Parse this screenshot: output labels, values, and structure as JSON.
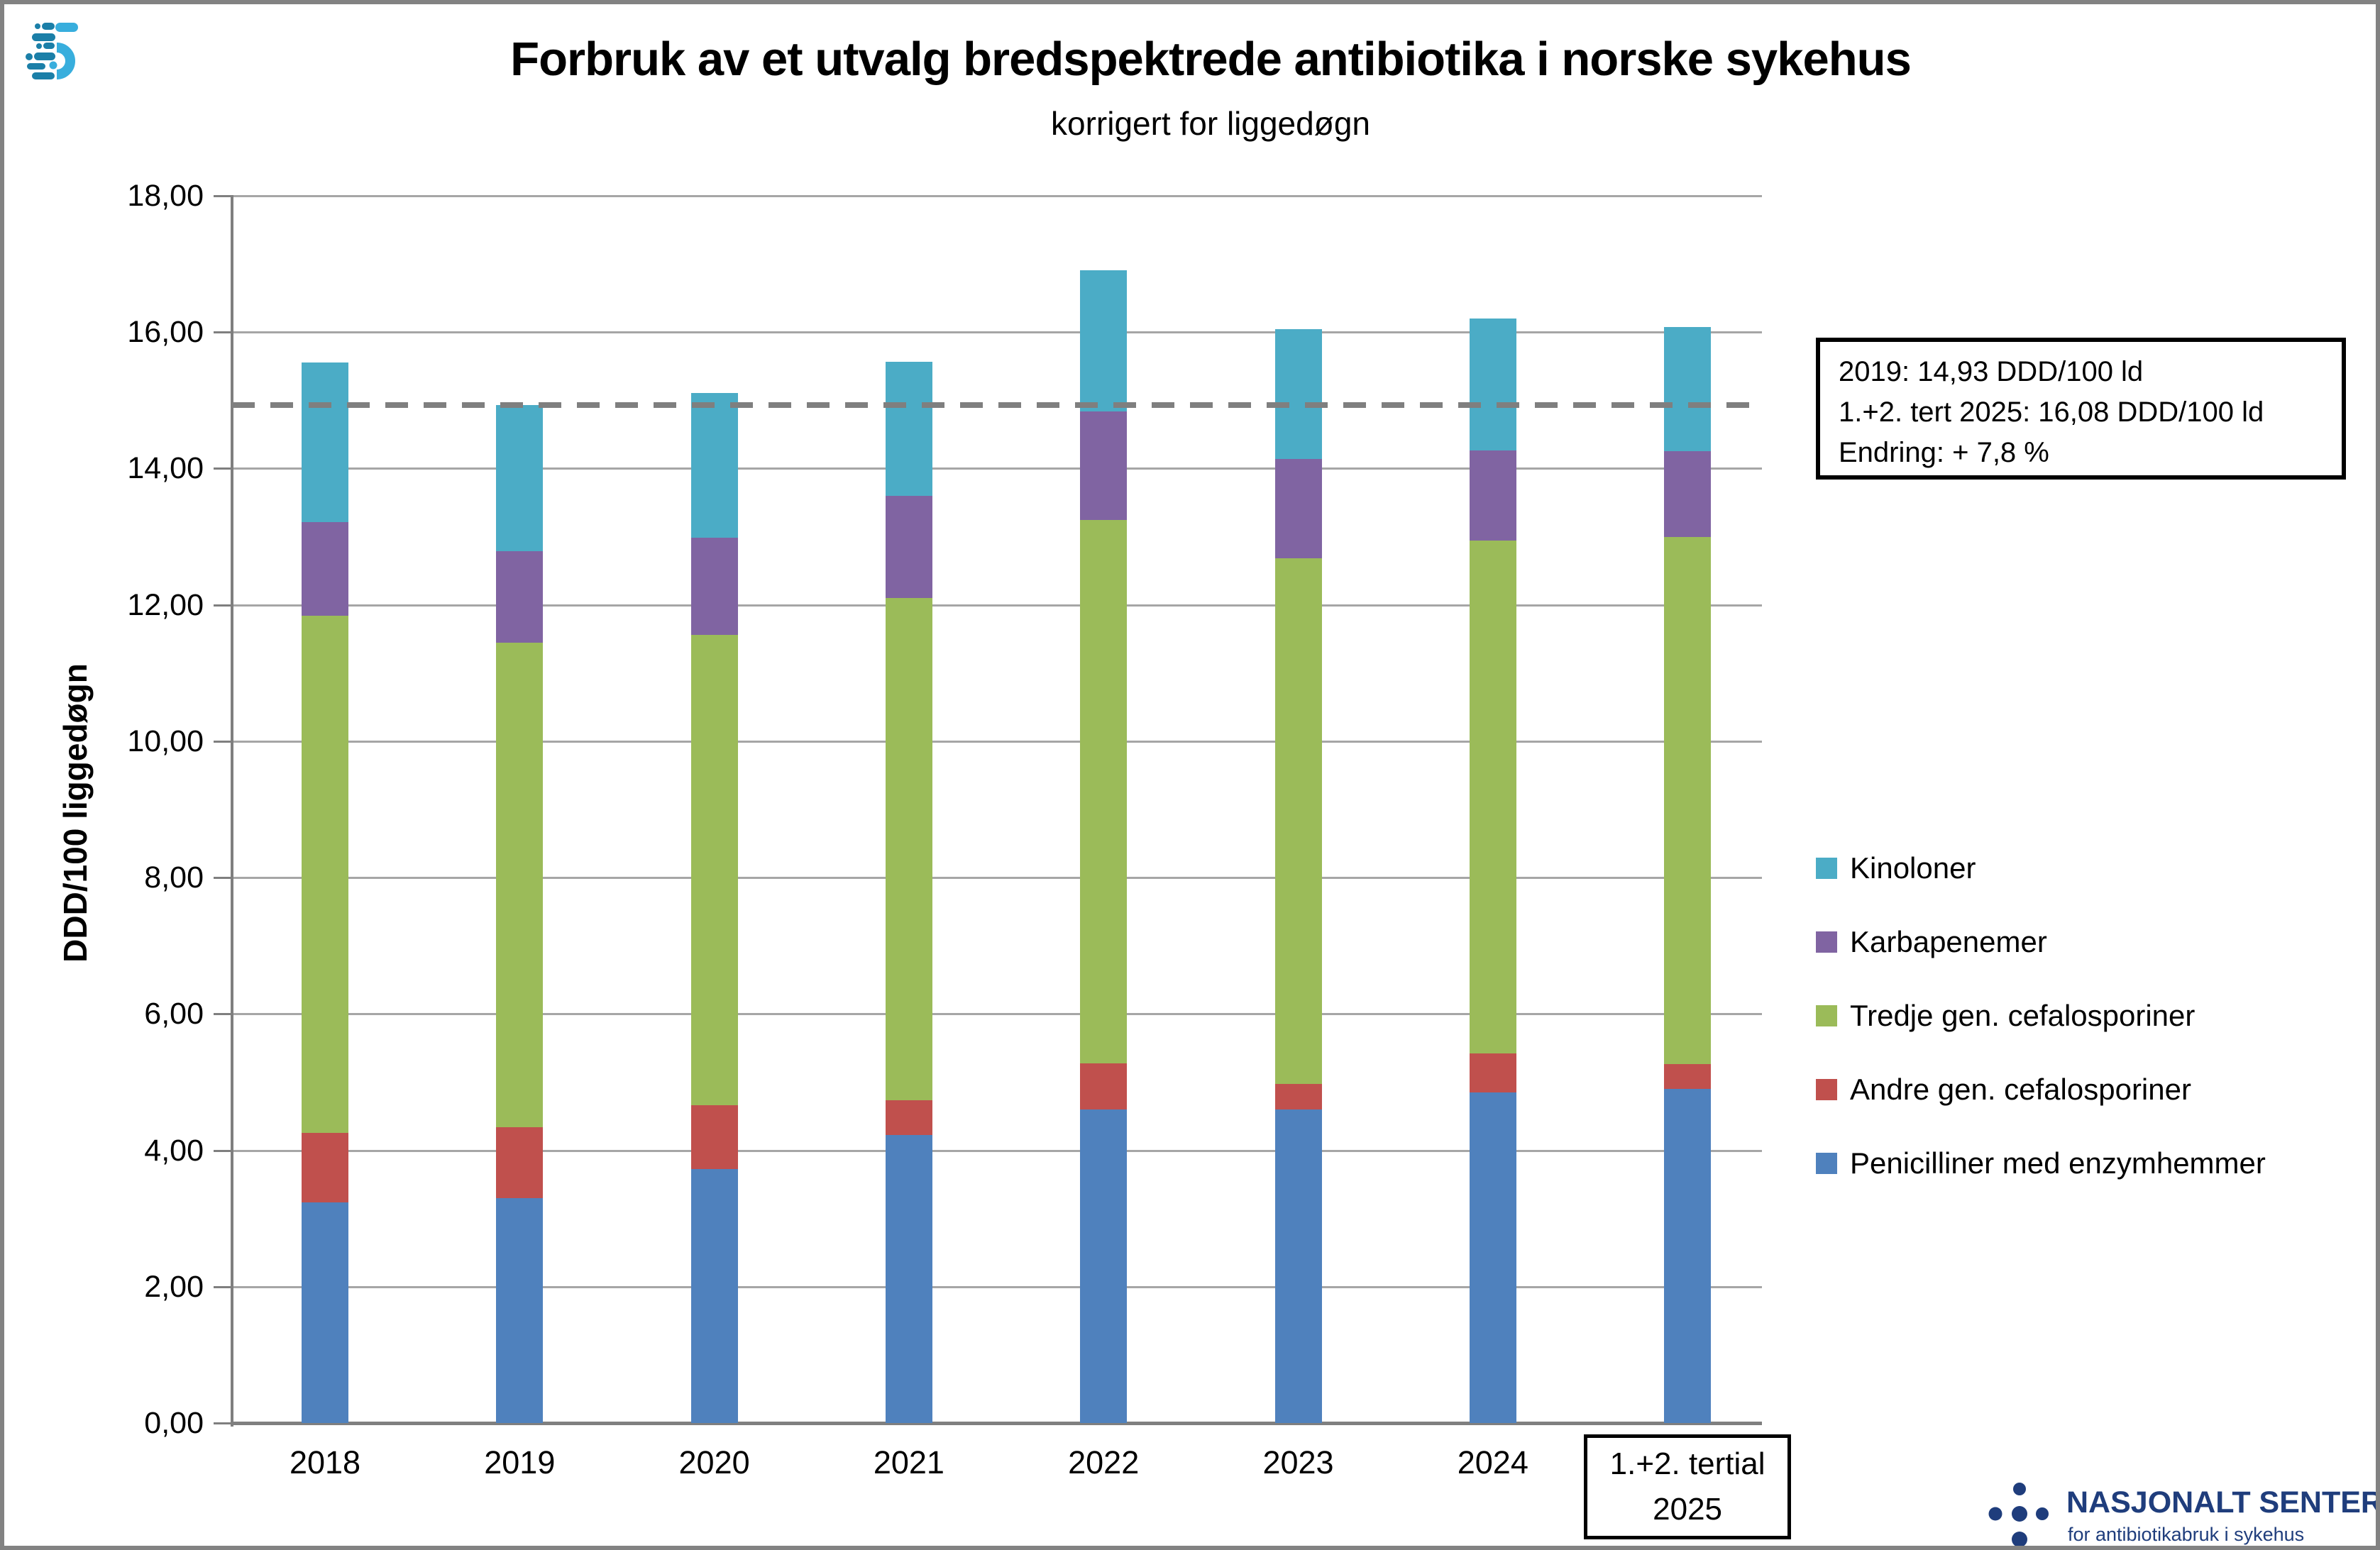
{
  "annotation": {
    "line1": "2019: 14,93 DDD/100 ld",
    "line2": "1.+2. tert 2025: 16,08 DDD/100 ld",
    "line3": "Endring: + 7,8 %"
  },
  "footer_logo": {
    "name": "NASJONALT SENTER",
    "tagline": "for antibiotikabruk i sykehus",
    "color": "#1F3D7C"
  },
  "app_logo": {
    "light": "#38AEDD",
    "dark": "#1B7FA8"
  },
  "chart_data": {
    "type": "bar",
    "stacked": true,
    "title": "Forbruk av et utvalg bredspektrede antibiotika i norske sykehus",
    "subtitle": "korrigert for liggedøgn",
    "xlabel": "",
    "ylabel": "DDD/100 liggedøgn",
    "ylim": [
      0,
      18
    ],
    "ytick_step": 2,
    "ytick_format": "0,00",
    "grid": true,
    "legend_position": "right",
    "categories": [
      "2018",
      "2019",
      "2020",
      "2021",
      "2022",
      "2023",
      "2024",
      "1.+2. tertial|2025"
    ],
    "boxed_last_category": true,
    "series": [
      {
        "name": "Penicilliner med enzymhemmer",
        "color": "#4F81BD",
        "values": [
          3.24,
          3.3,
          3.72,
          4.22,
          4.6,
          4.6,
          4.85,
          4.9
        ]
      },
      {
        "name": "Andre gen. cefalosporiner",
        "color": "#C0504D",
        "values": [
          1.02,
          1.04,
          0.94,
          0.51,
          0.68,
          0.37,
          0.57,
          0.36
        ]
      },
      {
        "name": "Tredje gen. cefalosporiner",
        "color": "#9BBB59",
        "values": [
          7.58,
          7.11,
          6.9,
          7.37,
          7.96,
          7.71,
          7.52,
          7.74
        ]
      },
      {
        "name": "Karbapenemer",
        "color": "#8064A2",
        "values": [
          1.37,
          1.34,
          1.42,
          1.5,
          1.6,
          1.46,
          1.32,
          1.25
        ]
      },
      {
        "name": "Kinoloner",
        "color": "#4BACC6",
        "values": [
          2.34,
          2.14,
          2.13,
          1.97,
          2.07,
          1.9,
          1.94,
          1.83
        ]
      }
    ],
    "totals": [
      15.55,
      14.93,
      15.11,
      15.57,
      16.91,
      16.04,
      16.2,
      16.08
    ],
    "legend_order_top_to_bottom": [
      "Kinoloner",
      "Karbapenemer",
      "Tredje gen. cefalosporiner",
      "Andre gen. cefalosporiner",
      "Penicilliner med enzymhemmer"
    ],
    "reference_line": {
      "value": 14.93,
      "style": "dashed",
      "color": "#7F7F7F"
    },
    "axis_color": "#7F7F7F",
    "gridline_color": "#A6A6A6"
  }
}
